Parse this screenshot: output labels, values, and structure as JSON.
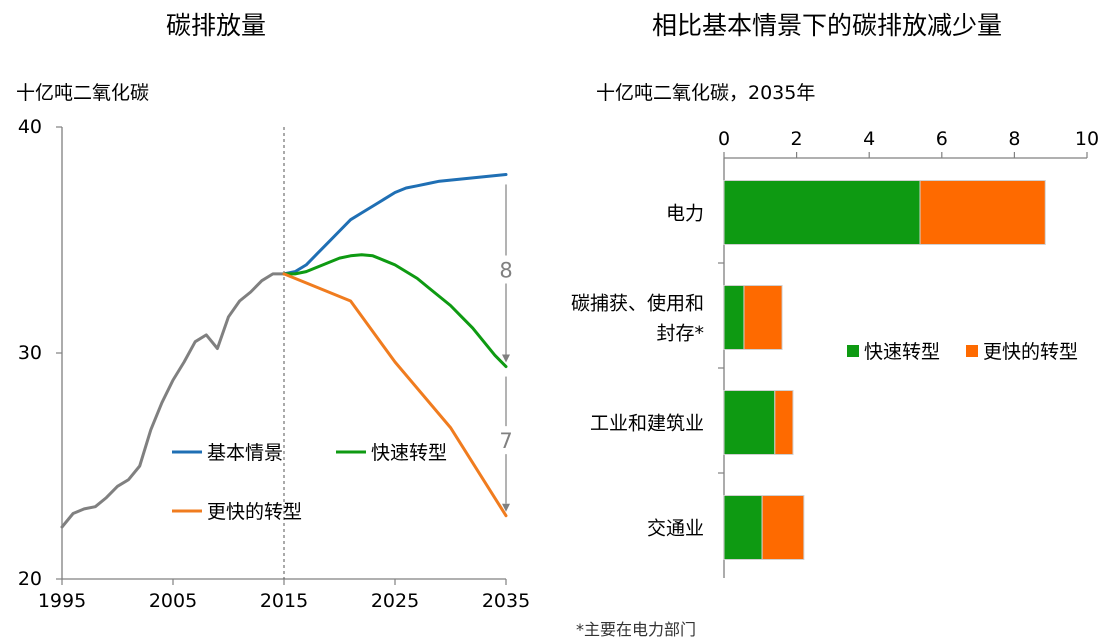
{
  "left_panel": {
    "title": "碳排放量",
    "unit": "十亿吨二氧化碳"
  },
  "right_panel": {
    "title": "相比基本情景下的碳排放减少量",
    "unit": "十亿吨二氧化碳，2035年"
  },
  "footnote": "*主要在电力部门",
  "chart_data": [
    {
      "type": "line",
      "title": "碳排放量",
      "ylabel": "十亿吨二氧化碳",
      "xlim": [
        1995,
        2035
      ],
      "ylim": [
        20,
        40
      ],
      "x_ticks": [
        "1995",
        "2005",
        "2015",
        "2025",
        "2035"
      ],
      "y_ticks": [
        "20",
        "30",
        "40"
      ],
      "grid": false,
      "vertical_marker_x": 2015,
      "series": [
        {
          "name": "",
          "color": "#808080",
          "x": [
            1995,
            1996,
            1997,
            1998,
            1999,
            2000,
            2001,
            2002,
            2003,
            2004,
            2005,
            2006,
            2007,
            2008,
            2009,
            2010,
            2011,
            2012,
            2013,
            2014,
            2015
          ],
          "y": [
            22.3,
            22.9,
            23.1,
            23.2,
            23.6,
            24.1,
            24.4,
            25.0,
            26.6,
            27.8,
            28.8,
            29.6,
            30.5,
            30.8,
            30.2,
            31.6,
            32.3,
            32.7,
            33.2,
            33.5,
            33.5
          ]
        },
        {
          "name": "基本情景",
          "color": "#1f6fb4",
          "x": [
            2015,
            2016,
            2017,
            2018,
            2019,
            2020,
            2021,
            2022,
            2023,
            2024,
            2025,
            2026,
            2027,
            2028,
            2029,
            2030,
            2031,
            2032,
            2033,
            2034,
            2035
          ],
          "y": [
            33.5,
            33.6,
            33.9,
            34.4,
            34.9,
            35.4,
            35.9,
            36.2,
            36.5,
            36.8,
            37.1,
            37.3,
            37.4,
            37.5,
            37.6,
            37.65,
            37.7,
            37.75,
            37.8,
            37.85,
            37.9
          ]
        },
        {
          "name": "快速转型",
          "color": "#0e9a12",
          "x": [
            2015,
            2016,
            2017,
            2018,
            2019,
            2020,
            2021,
            2022,
            2023,
            2024,
            2025,
            2026,
            2027,
            2028,
            2029,
            2030,
            2031,
            2032,
            2033,
            2034,
            2035
          ],
          "y": [
            33.5,
            33.5,
            33.6,
            33.8,
            34.0,
            34.2,
            34.3,
            34.35,
            34.3,
            34.1,
            33.9,
            33.6,
            33.3,
            32.9,
            32.5,
            32.1,
            31.6,
            31.1,
            30.5,
            29.9,
            29.4
          ]
        },
        {
          "name": "更快的转型",
          "color": "#f07c1f",
          "x": [
            2015,
            2021,
            2025,
            2030,
            2035
          ],
          "y": [
            33.5,
            32.3,
            29.6,
            26.7,
            22.8
          ]
        }
      ],
      "annotations": [
        {
          "text": "8",
          "x": 2035,
          "from": 37.9,
          "to": 29.4
        },
        {
          "text": "7",
          "x": 2035,
          "from": 29.4,
          "to": 22.8
        }
      ],
      "legend": {
        "placement": "inside-bottom",
        "entries": [
          "基本情景",
          "快速转型",
          "更快的转型"
        ]
      }
    },
    {
      "type": "bar",
      "orientation": "horizontal",
      "stacked": true,
      "title": "相比基本情景下的碳排放减少量",
      "xlabel": "十亿吨二氧化碳，2035年",
      "xlim": [
        0,
        10
      ],
      "x_ticks": [
        "0",
        "2",
        "4",
        "6",
        "8",
        "10"
      ],
      "categories": [
        "电力",
        "碳捕获、使用和封存*",
        "工业和建筑业",
        "交通业"
      ],
      "category_lines": [
        [
          "电力"
        ],
        [
          "碳捕获、使用和",
          "封存*"
        ],
        [
          "工业和建筑业"
        ],
        [
          "交通业"
        ]
      ],
      "series": [
        {
          "name": "快速转型",
          "color": "#0e9a12",
          "values": [
            5.4,
            0.55,
            1.4,
            1.05
          ]
        },
        {
          "name": "更快的转型",
          "color": "#fe6a00",
          "values": [
            3.45,
            1.05,
            0.5,
            1.15
          ]
        }
      ],
      "legend": {
        "placement": "right-middle",
        "entries": [
          "快速转型",
          "更快的转型"
        ]
      }
    }
  ]
}
